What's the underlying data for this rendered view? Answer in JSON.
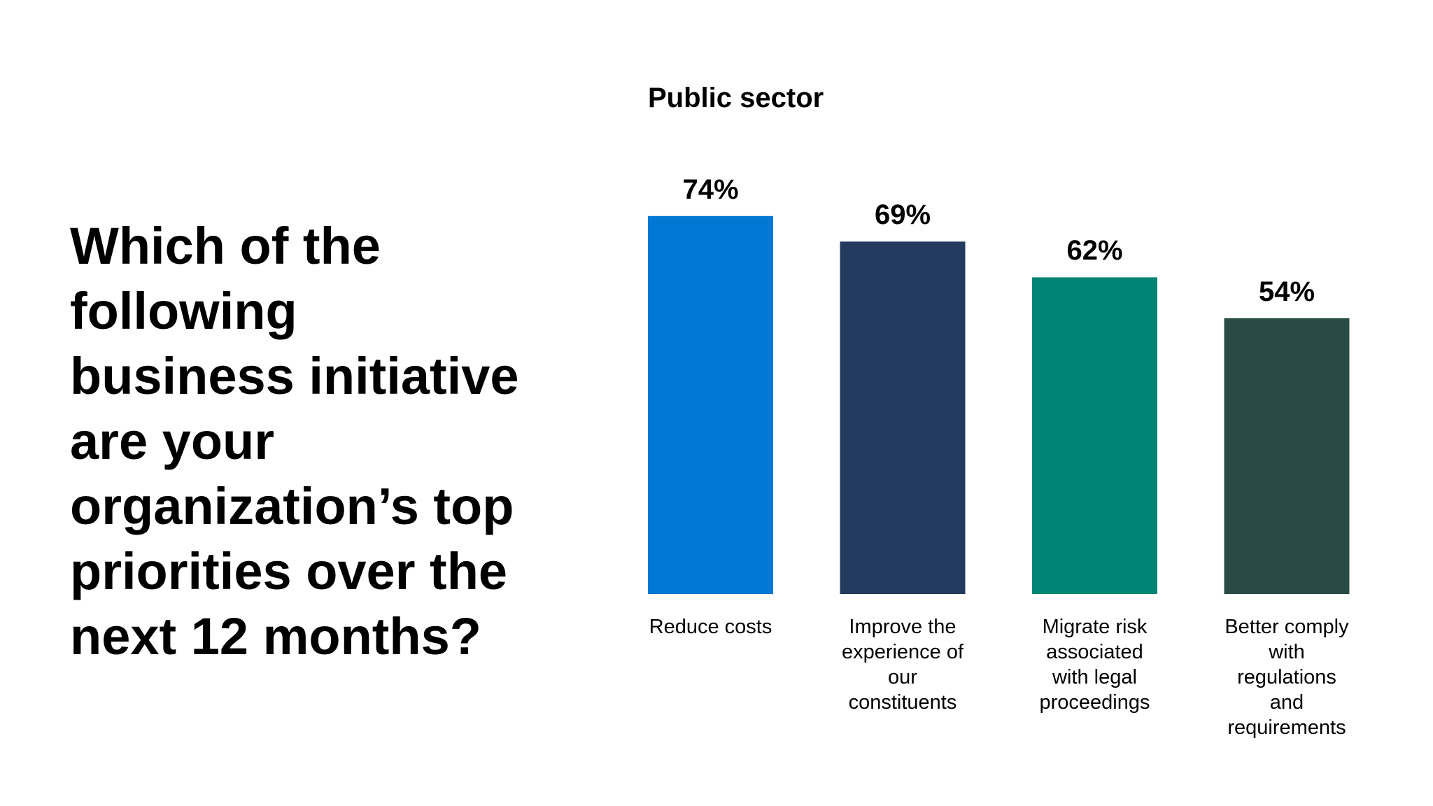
{
  "question": "Which of the following business initiative are your organization’s top priorities over the next 12 months?",
  "chart_data": {
    "type": "bar",
    "title": "Public sector",
    "categories": [
      "Reduce costs",
      "Improve the experience of our constituents",
      "Migrate risk associated with legal proceedings",
      "Better comply with regulations and requirements"
    ],
    "values": [
      74,
      69,
      62,
      54
    ],
    "value_labels": [
      "74%",
      "69%",
      "62%",
      "54%"
    ],
    "colors": [
      "#0078d4",
      "#243a5e",
      "#008575",
      "#284c45"
    ]
  }
}
